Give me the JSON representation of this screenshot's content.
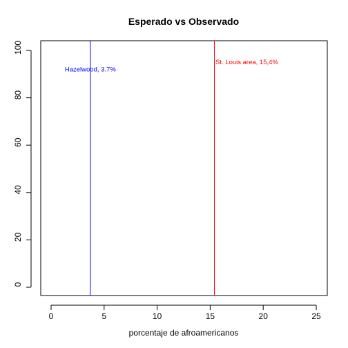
{
  "chart_data": {
    "type": "line",
    "title": "Esperado vs Observado",
    "xlabel": "porcentaje de afroamericanos",
    "ylabel": "",
    "xlim": [
      0,
      25
    ],
    "ylim": [
      0,
      100
    ],
    "x_ticks": [
      0,
      5,
      10,
      15,
      20,
      25
    ],
    "y_ticks": [
      0,
      20,
      40,
      60,
      80,
      100
    ],
    "grid": false,
    "vlines": [
      {
        "x": 3.7,
        "color": "#0000ff",
        "label": "Hazelwood, 3.7%",
        "label_y": 92
      },
      {
        "x": 15.4,
        "color": "#ff0000",
        "label": "St. Louis area, 15,4%",
        "label_y": 95
      }
    ]
  }
}
